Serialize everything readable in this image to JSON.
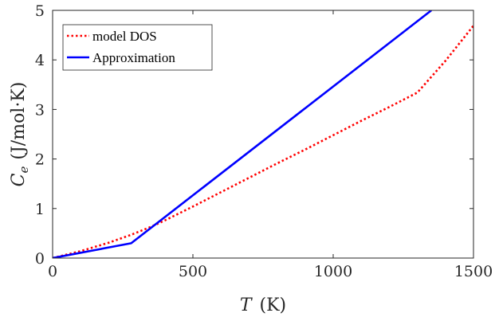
{
  "chart_data": {
    "type": "line",
    "title": "",
    "xlabel": {
      "symbol": "T",
      "unit": "(K)"
    },
    "ylabel": {
      "symbol": "C",
      "subscript": "e",
      "unit": "(J/mol·K)"
    },
    "xlim": [
      0,
      1500
    ],
    "ylim": [
      0,
      5
    ],
    "xticks": [
      0,
      500,
      1000,
      1500
    ],
    "yticks": [
      0,
      1,
      2,
      3,
      4,
      5
    ],
    "grid": false,
    "legend_position": "top-left",
    "series": [
      {
        "name": "model DOS",
        "color": "#ff0000",
        "style": "dotted",
        "x": [
          0,
          100,
          200,
          280,
          350,
          400,
          500,
          600,
          700,
          800,
          900,
          1000,
          1100,
          1200,
          1300,
          1400,
          1500
        ],
        "y": [
          0,
          0.14,
          0.31,
          0.47,
          0.63,
          0.76,
          1.04,
          1.33,
          1.62,
          1.91,
          2.19,
          2.48,
          2.77,
          3.05,
          3.34,
          3.98,
          4.69
        ]
      },
      {
        "name": "Approximation",
        "color": "#0000ff",
        "style": "solid",
        "x": [
          0,
          280,
          1350
        ],
        "y": [
          0,
          0.3,
          5
        ]
      }
    ]
  }
}
